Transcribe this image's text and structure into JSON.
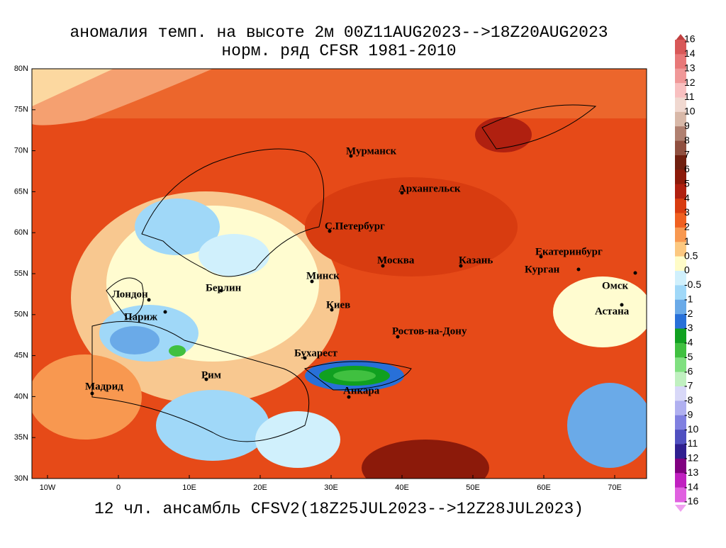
{
  "header": {
    "title_line1": "аномалия темп. на высоте 2м 00Z11AUG2023-->18Z20AUG2023",
    "title_line2": "норм. ряд CFSR 1981-2010"
  },
  "footer": "12 чл. ансамбль CFSV2(18Z25JUL2023-->12Z28JUL2023)",
  "map": {
    "lat_labels": [
      "80N",
      "75N",
      "70N",
      "65N",
      "60N",
      "55N",
      "50N",
      "45N",
      "40N",
      "35N",
      "30N"
    ],
    "lon_labels": [
      "10W",
      "0",
      "10E",
      "20E",
      "30E",
      "40E",
      "50E",
      "60E",
      "70E"
    ],
    "cities": [
      "Мурманск",
      "Архангельск",
      "С.Петербург",
      "Москва",
      "Казань",
      "Екатеринбург",
      "Курган",
      "Омск",
      "Астана",
      "Минск",
      "Берлин",
      "Лондон",
      "Париж",
      "Киев",
      "Ростов-на-Дону",
      "Бухарест",
      "Рим",
      "Мадрид",
      "Анкара"
    ]
  },
  "colorbar": {
    "labels": [
      "16",
      "14",
      "13",
      "12",
      "11",
      "10",
      "9",
      "8",
      "7",
      "6",
      "5",
      "4",
      "3",
      "2",
      "1",
      "0.5",
      "0",
      "-0.5",
      "-1",
      "-2",
      "-3",
      "-4",
      "-5",
      "-6",
      "-7",
      "-8",
      "-9",
      "-10",
      "-11",
      "-12",
      "-13",
      "-14",
      "-16"
    ]
  }
}
